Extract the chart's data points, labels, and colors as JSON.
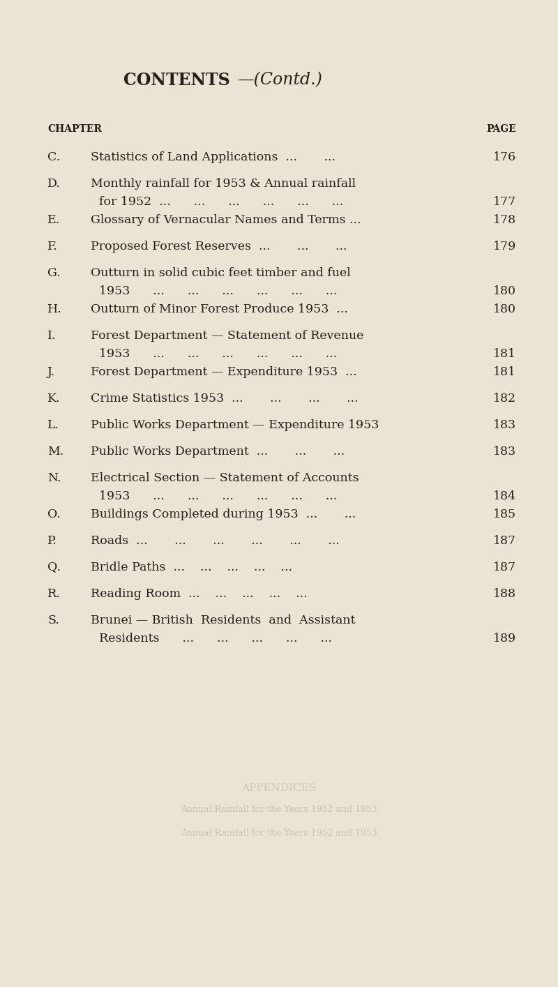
{
  "bg_color": "#EAE4D5",
  "title_bold": "CONTENTS",
  "title_dash_italic": "—(Contd.)",
  "col_chapter": "CHAPTER",
  "col_page": "PAGE",
  "entries": [
    {
      "letter": "C.",
      "line1": "Statistics of Land Applications",
      "line1_trail": "  ...       ...",
      "line2": null,
      "line2_trail": null,
      "page": "176",
      "two_line": false
    },
    {
      "letter": "D.",
      "line1": "Monthly rainfall for 1953 & Annual rainfall",
      "line1_trail": null,
      "line2": "for 1952  ...      ...      ...      ...      ...      ...",
      "line2_trail": null,
      "page": "177",
      "two_line": true
    },
    {
      "letter": "E.",
      "line1": "Glossary of Vernacular Names and Terms ...",
      "line1_trail": null,
      "line2": null,
      "line2_trail": null,
      "page": "178",
      "two_line": false
    },
    {
      "letter": "F.",
      "line1": "Proposed Forest Reserves",
      "line1_trail": "  ...       ...       ...",
      "line2": null,
      "line2_trail": null,
      "page": "179",
      "two_line": false
    },
    {
      "letter": "G.",
      "line1": "Outturn in solid cubic feet timber and fuel",
      "line1_trail": null,
      "line2": "1953      ...      ...      ...      ...      ...      ...",
      "line2_trail": null,
      "page": "180",
      "two_line": true
    },
    {
      "letter": "H.",
      "line1": "Outturn of Minor Forest Produce 1953",
      "line1_trail": "  ...",
      "line2": null,
      "line2_trail": null,
      "page": "180",
      "two_line": false
    },
    {
      "letter": "I.",
      "line1": "Forest Department — Statement of Revenue",
      "line1_trail": null,
      "line2": "1953      ...      ...      ...      ...      ...      ...",
      "line2_trail": null,
      "page": "181",
      "two_line": true
    },
    {
      "letter": "J.",
      "line1": "Forest Department — Expenditure 1953",
      "line1_trail": "  ...",
      "line2": null,
      "line2_trail": null,
      "page": "181",
      "two_line": false
    },
    {
      "letter": "K.",
      "line1": "Crime Statistics 1953",
      "line1_trail": "  ...       ...       ...       ...",
      "line2": null,
      "line2_trail": null,
      "page": "182",
      "two_line": false
    },
    {
      "letter": "L.",
      "line1": "Public Works Department — Expenditure 1953",
      "line1_trail": null,
      "line2": null,
      "line2_trail": null,
      "page": "183",
      "two_line": false
    },
    {
      "letter": "M.",
      "line1": "Public Works Department",
      "line1_trail": "  ...       ...       ...",
      "line2": null,
      "line2_trail": null,
      "page": "183",
      "two_line": false
    },
    {
      "letter": "N.",
      "line1": "Electrical Section — Statement of Accounts",
      "line1_trail": null,
      "line2": "1953      ...      ...      ...      ...      ...      ...",
      "line2_trail": null,
      "page": "184",
      "two_line": true
    },
    {
      "letter": "O.",
      "line1": "Buildings Completed during 1953",
      "line1_trail": "  ...       ...",
      "line2": null,
      "line2_trail": null,
      "page": "185",
      "two_line": false
    },
    {
      "letter": "P.",
      "line1": "Roads",
      "line1_trail": "  ...       ...       ...       ...       ...       ...",
      "line2": null,
      "line2_trail": null,
      "page": "187",
      "two_line": false
    },
    {
      "letter": "Q.",
      "line1": "Bridle Paths",
      "line1_trail": "  ...    ...    ...    ...    ...",
      "line2": null,
      "line2_trail": null,
      "page": "187",
      "two_line": false
    },
    {
      "letter": "R.",
      "line1": "Reading Room",
      "line1_trail": "  ...    ...    ...    ...    ...",
      "line2": null,
      "line2_trail": null,
      "page": "188",
      "two_line": false
    },
    {
      "letter": "S.",
      "line1": "Brunei — British  Residents  and  Assistant",
      "line1_trail": null,
      "line2": "Residents      ...      ...      ...      ...      ...",
      "line2_trail": null,
      "page": "189",
      "two_line": true
    }
  ],
  "text_color": "#252018",
  "faded_lines": [
    "Annual Rainfall for the Years 1952 and 1953",
    "Annual Rainfall for the Years 1952 and 1953"
  ]
}
